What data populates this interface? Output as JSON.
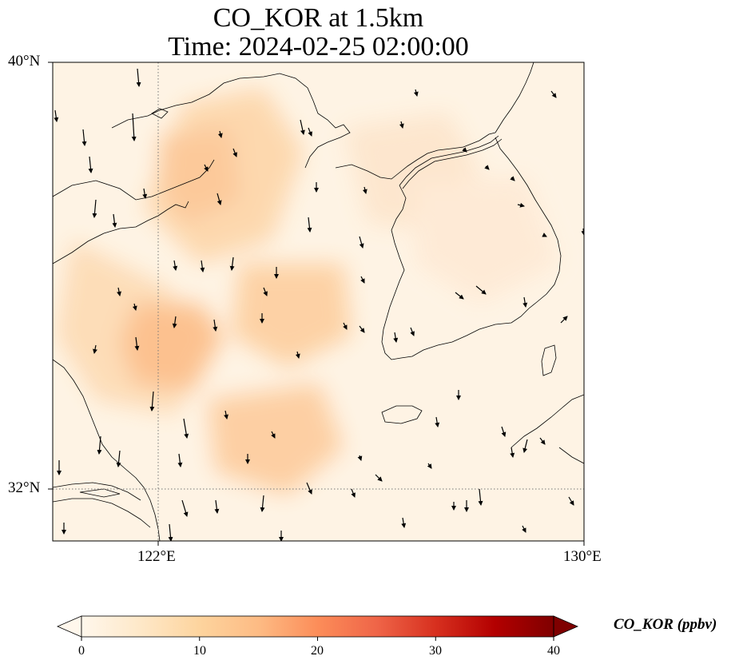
{
  "title": {
    "line1": "CO_KOR at 1.5km",
    "line2": "Time: 2024-02-25 02:00:00"
  },
  "map": {
    "lat_ticks": [
      "40°N",
      "32°N"
    ],
    "lon_ticks": [
      "122°E",
      "130°E"
    ],
    "lat_range": [
      31,
      40
    ],
    "lon_range": [
      120,
      130
    ],
    "gridlines": "dotted at 122°E and 32°N",
    "projection": "PlateCarree",
    "field": "CO_KOR",
    "level": "1.5km",
    "vector_overlay": "wind arrows (black), predominantly southward"
  },
  "colorbar": {
    "title": "CO_KOR (ppbv)",
    "ticks": [
      "0",
      "10",
      "20",
      "30",
      "40"
    ],
    "range": [
      0,
      40
    ],
    "colormap": "OrRd",
    "extend": "both",
    "colors": [
      "#fff7ec",
      "#fee8c8",
      "#fdd49e",
      "#fdbb84",
      "#fc8d59",
      "#ef6548",
      "#d7301f",
      "#b30000",
      "#7f0000"
    ]
  }
}
